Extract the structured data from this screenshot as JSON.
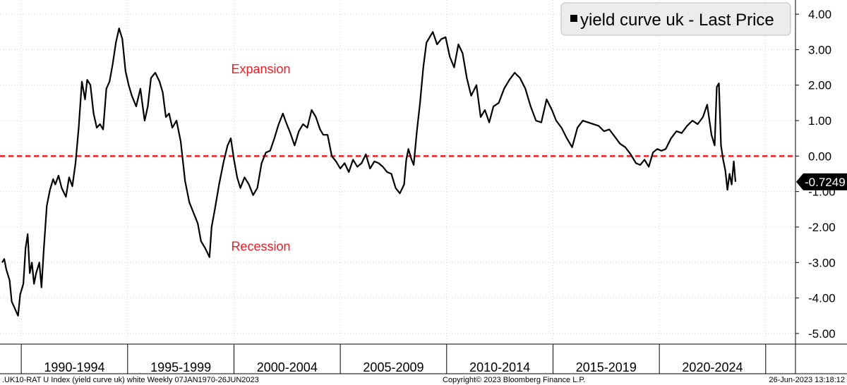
{
  "chart_data": {
    "type": "line",
    "title": "",
    "xlabel": "",
    "ylabel": "",
    "ylim": [
      -5.3,
      4.4
    ],
    "y_ticks": [
      "4.00",
      "3.00",
      "2.00",
      "1.00",
      "0.00",
      "-1.00",
      "-2.00",
      "-3.00",
      "-4.00",
      "-5.00"
    ],
    "y_tick_values": [
      4,
      3,
      2,
      1,
      0,
      -1,
      -2,
      -3,
      -4,
      -5
    ],
    "xlim": [
      1988.9,
      2026.3
    ],
    "x_period_boundaries": [
      1989.9,
      1994.9,
      1999.9,
      2004.9,
      2009.9,
      2014.9,
      2019.9,
      2024.9
    ],
    "categories": [
      "1990-1994",
      "1995-1999",
      "2000-2004",
      "2005-2009",
      "2010-2014",
      "2015-2019",
      "2020-2024"
    ],
    "grid": true,
    "legend": {
      "label": "yield curve uk - Last Price",
      "placement": "top-right",
      "color": "#000000"
    },
    "reference_line": {
      "value": 0,
      "color": "#ee1c25",
      "style": "dashed"
    },
    "annotations": [
      {
        "text": "Expansion",
        "x": 1999.9,
        "y": 2.45,
        "color": "#ee1c25"
      },
      {
        "text": "Recession",
        "x": 1999.9,
        "y": -2.55,
        "color": "#ee1c25"
      }
    ],
    "last_value": {
      "label": "-0.7249",
      "value": -0.7249
    },
    "footer": {
      "left": ".UK10-RAT U Index (yield curve uk) white  Weekly 07JAN1970-26JUN2023",
      "center": "Copyright© 2023 Bloomberg Finance L.P.",
      "right": "26-Jun-2023 13:18:12"
    },
    "series": [
      {
        "name": "yield curve uk",
        "color": "#000000",
        "x": [
          1989.0,
          1989.1,
          1989.2,
          1989.35,
          1989.45,
          1989.6,
          1989.75,
          1989.85,
          1990.0,
          1990.1,
          1990.2,
          1990.3,
          1990.4,
          1990.5,
          1990.6,
          1990.75,
          1990.85,
          1990.95,
          1991.1,
          1991.25,
          1991.4,
          1991.5,
          1991.65,
          1991.8,
          1992.0,
          1992.15,
          1992.3,
          1992.45,
          1992.6,
          1992.75,
          1992.9,
          1993.0,
          1993.15,
          1993.3,
          1993.45,
          1993.6,
          1993.75,
          1993.9,
          1994.05,
          1994.2,
          1994.35,
          1994.5,
          1994.65,
          1994.8,
          1994.95,
          1995.1,
          1995.3,
          1995.5,
          1995.7,
          1995.85,
          1996.0,
          1996.2,
          1996.4,
          1996.55,
          1996.7,
          1996.85,
          1997.0,
          1997.2,
          1997.4,
          1997.6,
          1997.8,
          1998.0,
          1998.2,
          1998.35,
          1998.55,
          1998.75,
          1998.85,
          1999.0,
          1999.2,
          1999.4,
          1999.6,
          1999.75,
          1999.9,
          2000.05,
          2000.2,
          2000.4,
          2000.6,
          2000.8,
          2001.0,
          2001.2,
          2001.4,
          2001.6,
          2001.8,
          2002.0,
          2002.2,
          2002.35,
          2002.55,
          2002.75,
          2002.95,
          2003.15,
          2003.35,
          2003.55,
          2003.75,
          2003.95,
          2004.1,
          2004.3,
          2004.5,
          2004.7,
          2004.9,
          2005.1,
          2005.3,
          2005.5,
          2005.7,
          2005.9,
          2006.1,
          2006.3,
          2006.5,
          2006.7,
          2006.9,
          2007.1,
          2007.3,
          2007.5,
          2007.7,
          2007.9,
          2008.0,
          2008.1,
          2008.25,
          2008.35,
          2008.5,
          2008.65,
          2008.8,
          2008.95,
          2009.1,
          2009.25,
          2009.45,
          2009.65,
          2009.85,
          2010.05,
          2010.25,
          2010.45,
          2010.65,
          2010.85,
          2011.05,
          2011.3,
          2011.5,
          2011.7,
          2011.9,
          2012.1,
          2012.35,
          2012.6,
          2012.85,
          2013.1,
          2013.35,
          2013.6,
          2013.85,
          2014.1,
          2014.35,
          2014.6,
          2014.85,
          2015.05,
          2015.3,
          2015.55,
          2015.8,
          2016.05,
          2016.3,
          2016.55,
          2016.8,
          2017.05,
          2017.3,
          2017.55,
          2017.8,
          2018.05,
          2018.3,
          2018.55,
          2018.8,
          2019.0,
          2019.2,
          2019.4,
          2019.6,
          2019.8,
          2020.0,
          2020.2,
          2020.45,
          2020.7,
          2020.95,
          2021.2,
          2021.45,
          2021.7,
          2021.95,
          2022.15,
          2022.35,
          2022.5,
          2022.6,
          2022.7,
          2022.8,
          2022.9,
          2023.0,
          2023.1,
          2023.2,
          2023.3,
          2023.4,
          2023.48
        ],
        "values": [
          -3.0,
          -2.9,
          -3.2,
          -3.5,
          -4.1,
          -4.3,
          -4.5,
          -3.9,
          -3.6,
          -2.6,
          -2.2,
          -3.3,
          -3.0,
          -3.6,
          -3.3,
          -3.0,
          -3.7,
          -2.7,
          -1.4,
          -0.95,
          -0.65,
          -0.8,
          -0.55,
          -0.9,
          -1.15,
          -0.6,
          -0.85,
          -0.2,
          0.8,
          2.1,
          1.6,
          2.15,
          2.0,
          1.2,
          0.8,
          0.9,
          0.75,
          1.9,
          2.1,
          2.6,
          3.2,
          3.6,
          3.3,
          2.4,
          2.0,
          1.7,
          1.4,
          1.9,
          1.0,
          1.4,
          2.2,
          2.35,
          2.1,
          1.8,
          1.1,
          1.2,
          0.8,
          1.0,
          0.4,
          -0.7,
          -1.3,
          -1.6,
          -1.9,
          -2.4,
          -2.6,
          -2.85,
          -2.0,
          -1.5,
          -0.8,
          -0.2,
          0.3,
          0.5,
          -0.1,
          -0.6,
          -0.9,
          -0.6,
          -0.8,
          -1.1,
          -0.9,
          -0.2,
          0.1,
          0.15,
          0.5,
          0.9,
          1.2,
          0.95,
          0.65,
          0.3,
          0.7,
          0.9,
          0.8,
          1.3,
          1.1,
          0.75,
          0.6,
          0.6,
          0.0,
          -0.15,
          -0.35,
          -0.2,
          -0.45,
          -0.1,
          -0.3,
          -0.2,
          0.05,
          -0.35,
          -0.15,
          -0.2,
          -0.3,
          -0.45,
          -0.5,
          -0.9,
          -1.05,
          -0.8,
          -0.1,
          0.2,
          -0.1,
          -0.25,
          0.7,
          1.5,
          2.5,
          3.2,
          3.35,
          3.5,
          3.15,
          3.3,
          3.35,
          2.8,
          2.5,
          3.15,
          2.9,
          2.2,
          1.7,
          2.0,
          1.1,
          1.3,
          0.95,
          1.4,
          1.5,
          1.9,
          2.15,
          2.35,
          2.2,
          1.9,
          1.4,
          1.0,
          0.95,
          1.6,
          1.3,
          1.0,
          0.8,
          0.5,
          0.25,
          0.8,
          1.0,
          0.95,
          0.9,
          0.85,
          0.7,
          0.75,
          0.55,
          0.35,
          0.25,
          0.05,
          -0.2,
          -0.25,
          -0.1,
          -0.3,
          0.1,
          0.2,
          0.15,
          0.2,
          0.5,
          0.7,
          0.65,
          0.85,
          1.0,
          0.9,
          1.1,
          1.45,
          0.6,
          0.3,
          1.95,
          2.05,
          0.3,
          -0.1,
          -0.4,
          -0.95,
          -0.5,
          -0.8,
          -0.15,
          -0.7249
        ]
      }
    ]
  }
}
